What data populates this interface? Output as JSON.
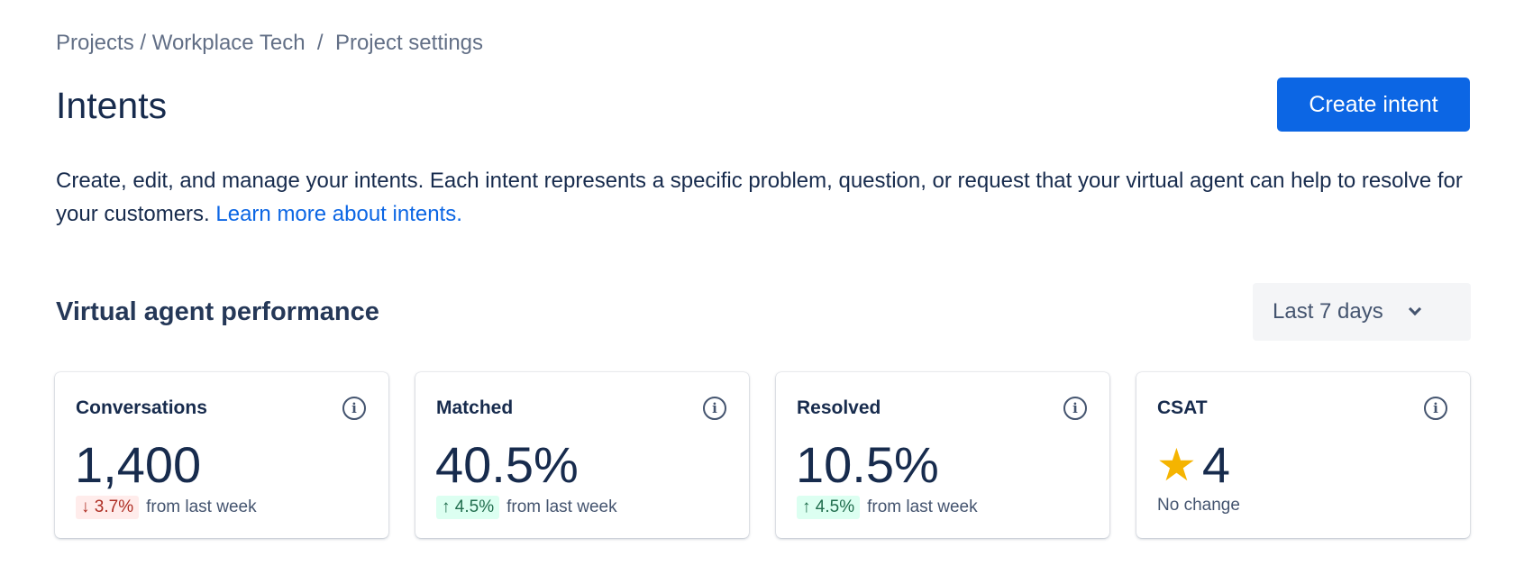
{
  "breadcrumb": [
    "Projects",
    "Workplace Tech",
    "Project settings"
  ],
  "breadcrumb_sep": " / ",
  "title": "Intents",
  "create_button": "Create intent",
  "description": "Create, edit, and manage your intents. Each intent represents a specific problem, question, or request that your virtual agent can help to resolve for your customers. ",
  "learn_more": "Learn more about intents.",
  "section_title": "Virtual agent performance",
  "range": {
    "selected": "Last 7 days"
  },
  "cards": [
    {
      "label": "Conversations",
      "value": "1,400",
      "change": "↓ 3.7%",
      "direction": "down",
      "note": "from last week"
    },
    {
      "label": "Matched",
      "value": "40.5%",
      "change": "↑ 4.5%",
      "direction": "up",
      "note": "from last week"
    },
    {
      "label": "Resolved",
      "value": "10.5%",
      "change": "↑ 4.5%",
      "direction": "up",
      "note": "from last week"
    },
    {
      "label": "CSAT",
      "value": "4",
      "icon": "star-icon",
      "note": "No change"
    }
  ],
  "colors": {
    "primary": "#0c66e4",
    "down": "#ae2e24",
    "up": "#216e4e",
    "star": "#f5b400"
  }
}
